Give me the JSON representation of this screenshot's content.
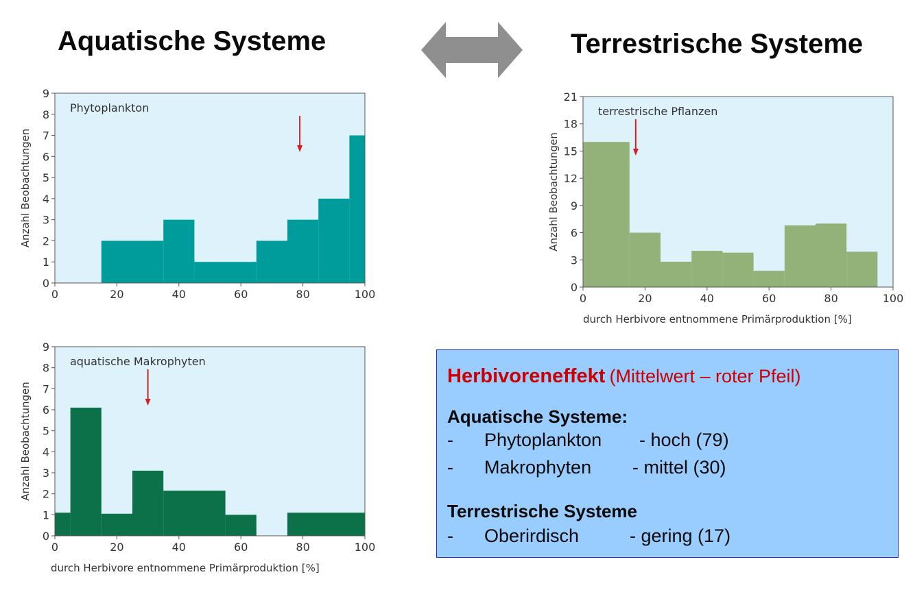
{
  "headings": {
    "left": "Aquatische Systeme",
    "right": "Terrestrische Systeme"
  },
  "arrow_icon": "double-headed-arrow",
  "chart_data": [
    {
      "id": "phyto",
      "type": "bar",
      "subtype": "histogram",
      "panel_label": "Phytoplankton",
      "ylabel": "Anzahl Beobachtungen",
      "xlabel": "",
      "xlim": [
        0,
        100
      ],
      "ylim": [
        0,
        9
      ],
      "xticks": [
        0,
        20,
        40,
        60,
        80,
        100
      ],
      "yticks": [
        0,
        1,
        2,
        3,
        4,
        5,
        6,
        7,
        8,
        9
      ],
      "bins": [
        {
          "x0": 15,
          "x1": 35,
          "value": 2
        },
        {
          "x0": 35,
          "x1": 45,
          "value": 3
        },
        {
          "x0": 45,
          "x1": 65,
          "value": 1
        },
        {
          "x0": 65,
          "x1": 75,
          "value": 2
        },
        {
          "x0": 75,
          "x1": 85,
          "value": 3
        },
        {
          "x0": 85,
          "x1": 95,
          "value": 4
        },
        {
          "x0": 95,
          "x1": 100,
          "value": 7
        }
      ],
      "mean_arrow_x": 79,
      "bar_color": "#009b9b",
      "bg_color": "#def2fc",
      "grid": false
    },
    {
      "id": "terr",
      "type": "bar",
      "subtype": "histogram",
      "panel_label": "terrestrische Pflanzen",
      "ylabel": "Anzahl Beobachtungen",
      "xlabel": "durch Herbivore entnommene Primärproduktion [%]",
      "xlim": [
        0,
        100
      ],
      "ylim": [
        0,
        21
      ],
      "xticks": [
        0,
        20,
        40,
        60,
        80,
        100
      ],
      "yticks": [
        0,
        3,
        6,
        9,
        12,
        15,
        18,
        21
      ],
      "bins": [
        {
          "x0": 0,
          "x1": 15,
          "value": 16
        },
        {
          "x0": 15,
          "x1": 25,
          "value": 6
        },
        {
          "x0": 25,
          "x1": 35,
          "value": 2.8
        },
        {
          "x0": 35,
          "x1": 45,
          "value": 4
        },
        {
          "x0": 45,
          "x1": 55,
          "value": 3.8
        },
        {
          "x0": 55,
          "x1": 65,
          "value": 1.8
        },
        {
          "x0": 65,
          "x1": 75,
          "value": 6.8
        },
        {
          "x0": 75,
          "x1": 85,
          "value": 7
        },
        {
          "x0": 85,
          "x1": 95,
          "value": 3.9
        }
      ],
      "mean_arrow_x": 17,
      "bar_color": "#92b27a",
      "bg_color": "#def2fc",
      "grid": false
    },
    {
      "id": "makro",
      "type": "bar",
      "subtype": "histogram",
      "panel_label": "aquatische Makrophyten",
      "ylabel": "Anzahl Beobachtungen",
      "xlabel": "durch Herbivore entnommene Primärproduktion [%]",
      "xlim": [
        0,
        100
      ],
      "ylim": [
        0,
        9
      ],
      "xticks": [
        0,
        20,
        40,
        60,
        80,
        100
      ],
      "yticks": [
        0,
        1,
        2,
        3,
        4,
        5,
        6,
        7,
        8,
        9
      ],
      "bins": [
        {
          "x0": 0,
          "x1": 5,
          "value": 1.1
        },
        {
          "x0": 5,
          "x1": 15,
          "value": 6.1
        },
        {
          "x0": 15,
          "x1": 25,
          "value": 1.05
        },
        {
          "x0": 25,
          "x1": 35,
          "value": 3.1
        },
        {
          "x0": 35,
          "x1": 55,
          "value": 2.15
        },
        {
          "x0": 55,
          "x1": 65,
          "value": 1
        },
        {
          "x0": 75,
          "x1": 100,
          "value": 1.1
        }
      ],
      "mean_arrow_x": 30,
      "bar_color": "#0c7048",
      "bg_color": "#def2fc",
      "grid": false
    }
  ],
  "infobox": {
    "title": "Herbivoreneffekt",
    "subtitle": "(Mittelwert – roter Pfeil)",
    "title_color": "#cc0000",
    "background": "#99ccff",
    "sections": [
      {
        "heading": "Aquatische Systeme:",
        "rows": [
          {
            "dash": "-",
            "name": "Phytoplankton",
            "value": "-  hoch (79)"
          },
          {
            "dash": "-",
            "name": "Makrophyten",
            "value": "-  mittel (30)"
          }
        ]
      },
      {
        "heading": "Terrestrische Systeme",
        "rows": [
          {
            "dash": "-",
            "name": "Oberirdisch",
            "value": "- gering (17)"
          }
        ]
      }
    ]
  }
}
